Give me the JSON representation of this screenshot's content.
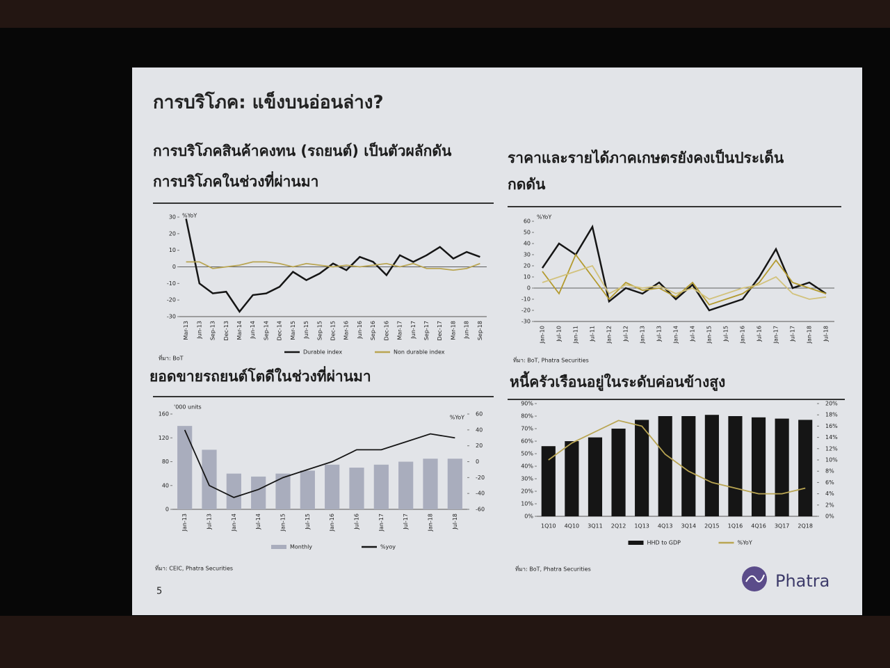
{
  "slide": {
    "title": "การบริโภค: แข็งบนอ่อนล่าง?",
    "page_number": "5",
    "logo": "Phatra"
  },
  "chart_data": [
    {
      "type": "line",
      "title": [
        "การบริโภคสินค้าคงทน (รถยนต์) เป็นตัวผลักดัน",
        "การบริโภคในช่วงที่ผ่านมา"
      ],
      "unit": "%YoY",
      "categories": [
        "Mar-13",
        "Jun-13",
        "Sep-13",
        "Dec-13",
        "Mar-14",
        "Jun-14",
        "Sep-14",
        "Dec-14",
        "Mar-15",
        "Jun-15",
        "Sep-15",
        "Dec-15",
        "Mar-16",
        "Jun-16",
        "Sep-16",
        "Dec-16",
        "Mar-17",
        "Jun-17",
        "Sep-17",
        "Dec-17",
        "Mar-18",
        "Jun-18",
        "Sep-18"
      ],
      "series": [
        {
          "name": "Durable index",
          "color": "#151515",
          "type": "line",
          "values": [
            29,
            -10,
            -16,
            -15,
            -27,
            -17,
            -16,
            -12,
            -3,
            -8,
            -4,
            2,
            -2,
            6,
            3,
            -5,
            7,
            3,
            7,
            12,
            5,
            9,
            6
          ]
        },
        {
          "name": "Non durable index",
          "color": "#b9a552",
          "type": "line",
          "values": [
            3,
            3,
            -1,
            0,
            1,
            3,
            3,
            2,
            0,
            2,
            1,
            0,
            1,
            0,
            1,
            2,
            0,
            2,
            -1,
            -1,
            -2,
            -1,
            2
          ]
        }
      ],
      "ylim": [
        -30,
        30
      ],
      "yticks": [
        -30,
        -20,
        -10,
        0,
        10,
        20,
        30
      ],
      "source": "ที่มา: BoT"
    },
    {
      "type": "line",
      "title": [
        "ราคาและรายได้ภาคเกษตรยังคงเป็นประเด็น",
        "กดดัน"
      ],
      "unit": "%YoY",
      "categories": [
        "Jan-10",
        "Jul-10",
        "Jan-11",
        "Jul-11",
        "Jan-12",
        "Jul-12",
        "Jan-13",
        "Jul-13",
        "Jan-14",
        "Jul-14",
        "Jan-15",
        "Jul-15",
        "Jan-16",
        "Jul-16",
        "Jan-17",
        "Jul-17",
        "Jan-18",
        "Jul-18"
      ],
      "series": [
        {
          "color": "#151515",
          "type": "line",
          "values": [
            18,
            40,
            30,
            55,
            -12,
            0,
            -5,
            5,
            -10,
            3,
            -20,
            -15,
            -10,
            10,
            35,
            0,
            5,
            -5
          ]
        },
        {
          "color": "#b39a2e",
          "type": "line",
          "values": [
            15,
            -5,
            30,
            10,
            -10,
            5,
            -2,
            0,
            -8,
            5,
            -15,
            -10,
            -5,
            5,
            25,
            5,
            0,
            -5
          ]
        },
        {
          "color": "#d2c27c",
          "type": "line",
          "values": [
            5,
            10,
            15,
            20,
            -5,
            3,
            0,
            2,
            -5,
            0,
            -10,
            -5,
            0,
            3,
            10,
            -5,
            -10,
            -8
          ]
        }
      ],
      "ylim": [
        -30,
        60
      ],
      "yticks": [
        -30,
        -20,
        -10,
        0,
        10,
        20,
        30,
        40,
        50,
        60
      ],
      "source": "ที่มา: BoT, Phatra Securities"
    },
    {
      "type": "combo",
      "title": [
        "ยอดขายรถยนต์โตดีในช่วงที่ผ่านมา"
      ],
      "unit": "'000 units",
      "unit2": "%YoY",
      "categories": [
        "Jan-13",
        "Jul-13",
        "Jan-14",
        "Jul-14",
        "Jan-15",
        "Jul-15",
        "Jan-16",
        "Jul-16",
        "Jan-17",
        "Jul-17",
        "Jan-18",
        "Jul-18"
      ],
      "series": [
        {
          "name": "Monthly",
          "color": "#a9adbd",
          "type": "bar",
          "values": [
            140,
            100,
            60,
            55,
            60,
            65,
            75,
            70,
            75,
            80,
            85,
            85
          ]
        },
        {
          "name": "%yoy",
          "color": "#151515",
          "type": "line",
          "axis": "y2",
          "values": [
            40,
            -30,
            -45,
            -35,
            -20,
            -10,
            0,
            15,
            15,
            25,
            35,
            30
          ]
        }
      ],
      "ylim": [
        0,
        160
      ],
      "yticks": [
        0,
        40,
        80,
        120,
        160
      ],
      "y2lim": [
        -60,
        60
      ],
      "y2ticks": [
        -60,
        -40,
        -20,
        0,
        20,
        40,
        60
      ],
      "source": "ที่มา: CEIC, Phatra Securities"
    },
    {
      "type": "combo",
      "title": [
        "หนี้ครัวเรือนอยู่ในระดับค่อนข้างสูง"
      ],
      "categories": [
        "1Q10",
        "4Q10",
        "3Q11",
        "2Q12",
        "1Q13",
        "4Q13",
        "3Q14",
        "2Q15",
        "1Q16",
        "4Q16",
        "3Q17",
        "2Q18"
      ],
      "series": [
        {
          "name": "HHD to GDP",
          "color": "#151515",
          "type": "bar",
          "values": [
            56,
            60,
            63,
            70,
            77,
            80,
            80,
            81,
            80,
            79,
            78,
            77
          ]
        },
        {
          "name": "%YoY",
          "color": "#b9a552",
          "type": "line",
          "axis": "y2",
          "values": [
            10,
            13,
            15,
            17,
            16,
            11,
            8,
            6,
            5,
            4,
            4,
            5
          ]
        }
      ],
      "ylim": [
        0,
        90
      ],
      "yticks": [
        {
          "value": 0,
          "label": "0%"
        },
        {
          "value": 10,
          "label": "10%"
        },
        {
          "value": 20,
          "label": "20%"
        },
        {
          "value": 30,
          "label": "30%"
        },
        {
          "value": 40,
          "label": "40%"
        },
        {
          "value": 50,
          "label": "50%"
        },
        {
          "value": 60,
          "label": "60%"
        },
        {
          "value": 70,
          "label": "70%"
        },
        {
          "value": 80,
          "label": "80%"
        },
        {
          "value": 90,
          "label": "90%"
        }
      ],
      "y2lim": [
        0,
        20
      ],
      "y2ticks": [
        {
          "value": 0,
          "label": "0%"
        },
        {
          "value": 2,
          "label": "2%"
        },
        {
          "value": 4,
          "label": "4%"
        },
        {
          "value": 6,
          "label": "6%"
        },
        {
          "value": 8,
          "label": "8%"
        },
        {
          "value": 10,
          "label": "10%"
        },
        {
          "value": 12,
          "label": "12%"
        },
        {
          "value": 14,
          "label": "14%"
        },
        {
          "value": 16,
          "label": "16%"
        },
        {
          "value": 18,
          "label": "18%"
        },
        {
          "value": 20,
          "label": "20%"
        }
      ],
      "source": "ที่มา: BoT, Phatra Securities"
    }
  ]
}
